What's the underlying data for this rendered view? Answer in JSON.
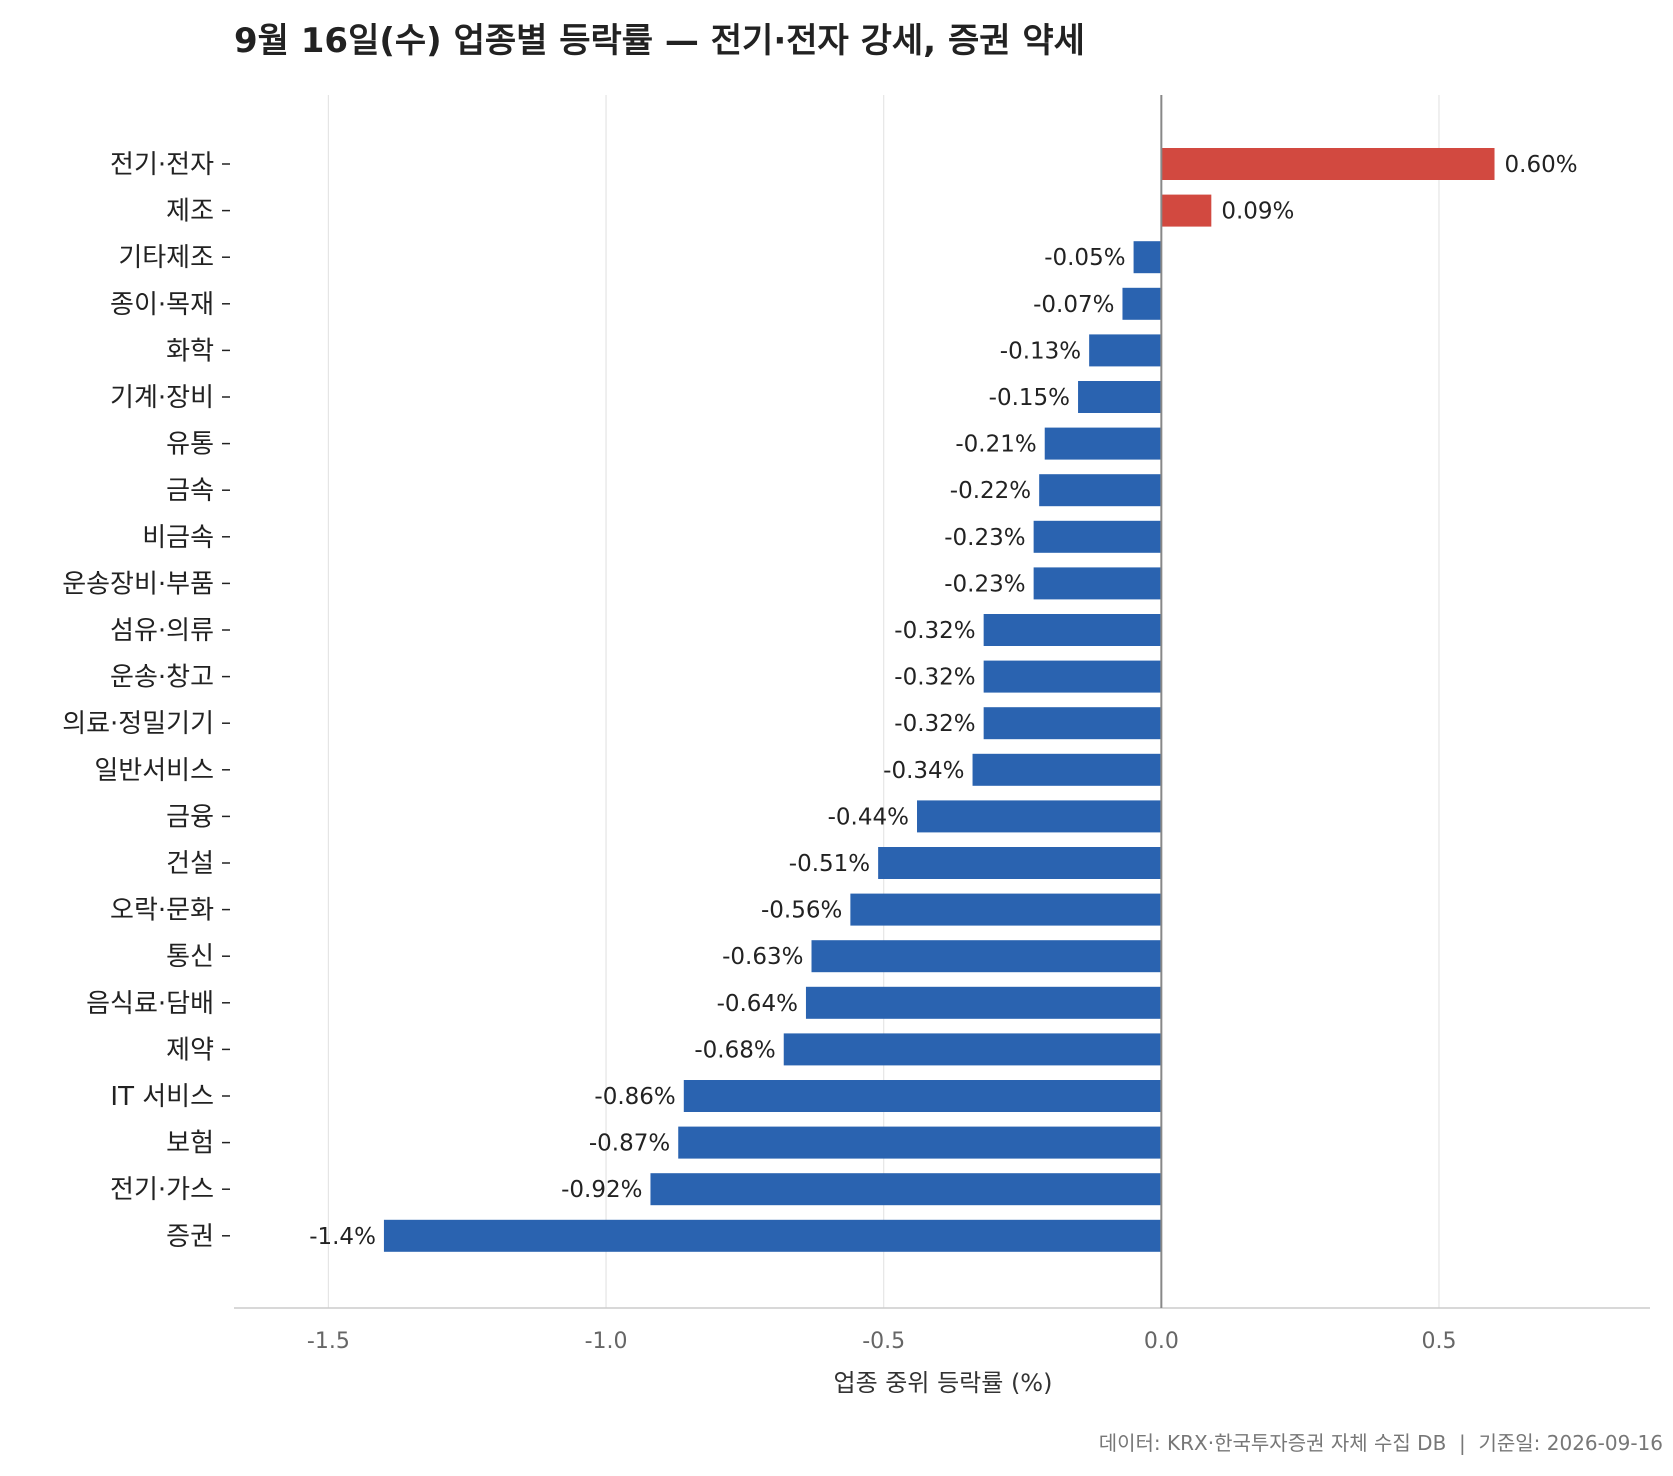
{
  "colors": {
    "positive": "#d24940",
    "negative": "#2a63b0",
    "grid": "#e5e5e5",
    "zero_line": "#888888",
    "axis_line": "#cccccc"
  },
  "chart_data": {
    "type": "bar",
    "orientation": "horizontal",
    "title": "9월 16일(수) 업종별 등락률 — 전기·전자 강세, 증권 약세",
    "xlabel": "업종 중위 등락률 (%)",
    "ylabel": "",
    "xlim": [
      -1.67,
      0.88
    ],
    "xticks": [
      -1.5,
      -1.0,
      -0.5,
      0.0,
      0.5
    ],
    "xtick_labels": [
      "-1.5",
      "-1.0",
      "-0.5",
      "0.0",
      "0.5"
    ],
    "grid": "vertical",
    "categories": [
      "전기·전자",
      "제조",
      "기타제조",
      "종이·목재",
      "화학",
      "기계·장비",
      "유통",
      "금속",
      "비금속",
      "운송장비·부품",
      "섬유·의류",
      "운송·창고",
      "의료·정밀기기",
      "일반서비스",
      "금융",
      "건설",
      "오락·문화",
      "통신",
      "음식료·담배",
      "제약",
      "IT 서비스",
      "보험",
      "전기·가스",
      "증권"
    ],
    "values": [
      0.6,
      0.09,
      -0.05,
      -0.07,
      -0.13,
      -0.15,
      -0.21,
      -0.22,
      -0.23,
      -0.23,
      -0.32,
      -0.32,
      -0.32,
      -0.34,
      -0.44,
      -0.51,
      -0.56,
      -0.63,
      -0.64,
      -0.68,
      -0.86,
      -0.87,
      -0.92,
      -1.4
    ],
    "value_labels": [
      "0.60%",
      "0.09%",
      "-0.05%",
      "-0.07%",
      "-0.13%",
      "-0.15%",
      "-0.21%",
      "-0.22%",
      "-0.23%",
      "-0.23%",
      "-0.32%",
      "-0.32%",
      "-0.32%",
      "-0.34%",
      "-0.44%",
      "-0.51%",
      "-0.56%",
      "-0.63%",
      "-0.64%",
      "-0.68%",
      "-0.86%",
      "-0.87%",
      "-0.92%",
      "-1.4%"
    ]
  },
  "source_note": "데이터: KRX·한국투자증권 자체 수집 DB  |  기준일: 2026-09-16"
}
